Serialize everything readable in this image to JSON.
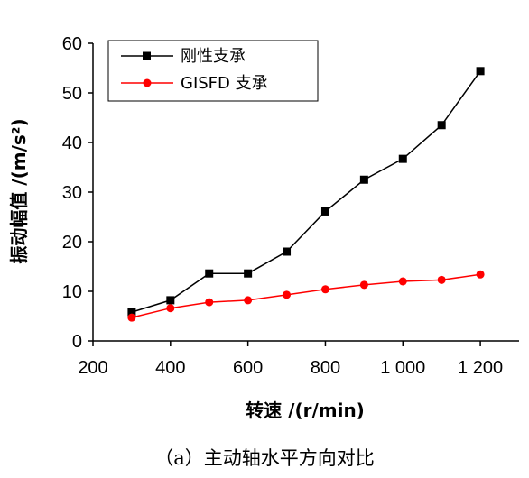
{
  "chart_data": {
    "type": "line",
    "xlabel": "转速 /(r/min)",
    "ylabel": "振动幅值 /(m/s²)",
    "xlim": [
      200,
      1300
    ],
    "ylim": [
      0,
      60
    ],
    "xticks": [
      200,
      400,
      600,
      800,
      1000,
      1200
    ],
    "xtick_labels": [
      "200",
      "400",
      "600",
      "800",
      "1 000",
      "1 200"
    ],
    "yticks": [
      0,
      10,
      20,
      30,
      40,
      50,
      60
    ],
    "ytick_labels": [
      "0",
      "10",
      "20",
      "30",
      "40",
      "50",
      "60"
    ],
    "x": [
      300,
      400,
      500,
      600,
      700,
      800,
      900,
      1000,
      1100,
      1200
    ],
    "series": [
      {
        "name": "刚性支承",
        "color": "#000000",
        "marker": "square",
        "values": [
          5.8,
          8.2,
          13.6,
          13.6,
          18.0,
          26.1,
          32.5,
          36.7,
          43.5,
          54.4
        ]
      },
      {
        "name": "GISFD 支承",
        "color": "#ff0000",
        "marker": "circle",
        "values": [
          4.7,
          6.6,
          7.8,
          8.2,
          9.3,
          10.4,
          11.3,
          12.0,
          12.3,
          13.4
        ]
      }
    ],
    "legend_position": "top-left",
    "grid": false
  },
  "caption": "（a）主动轴水平方向对比"
}
